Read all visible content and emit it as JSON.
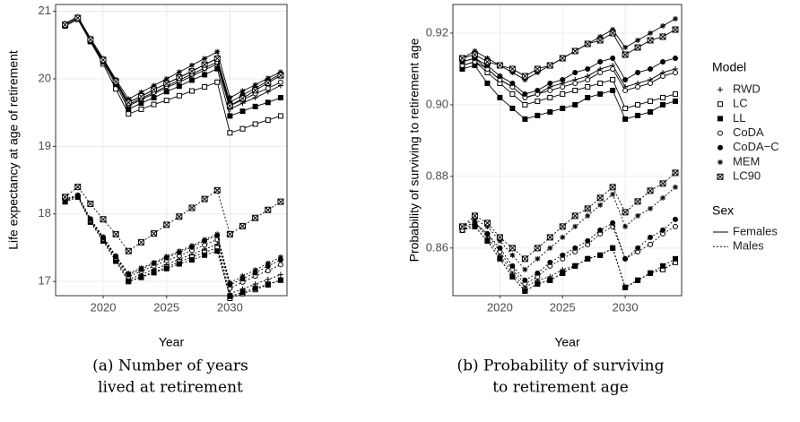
{
  "chart_data": [
    {
      "type": "line",
      "xlabel": "Year",
      "ylabel": "Life expectancy at age of retirement",
      "caption": [
        "(a) Number of years",
        "lived at retirement"
      ],
      "x": [
        2017,
        2018,
        2019,
        2020,
        2021,
        2022,
        2023,
        2024,
        2025,
        2026,
        2027,
        2028,
        2029,
        2030,
        2031,
        2032,
        2033,
        2034
      ],
      "xlim": [
        2016.25,
        2034.5
      ],
      "xticks": [
        2020,
        2025,
        2030
      ],
      "ylim": [
        16.79,
        21.1
      ],
      "yticks": [
        17,
        18,
        19,
        20,
        21
      ],
      "grid": true,
      "series": [
        {
          "model": "RWD",
          "sex": "Females",
          "values": [
            20.8,
            20.9,
            20.57,
            20.27,
            19.95,
            19.6,
            19.69,
            19.78,
            19.87,
            19.95,
            20.04,
            20.13,
            20.22,
            19.55,
            19.64,
            19.72,
            19.81,
            19.9
          ]
        },
        {
          "model": "LC",
          "sex": "Females",
          "values": [
            20.78,
            20.88,
            20.55,
            20.22,
            19.85,
            19.48,
            19.55,
            19.62,
            19.68,
            19.75,
            19.82,
            19.88,
            19.95,
            19.2,
            19.26,
            19.33,
            19.39,
            19.45
          ]
        },
        {
          "model": "LL",
          "sex": "Females",
          "values": [
            20.8,
            20.9,
            20.55,
            20.25,
            19.92,
            19.55,
            19.64,
            19.72,
            19.81,
            19.89,
            19.98,
            20.06,
            20.15,
            19.45,
            19.52,
            19.59,
            19.65,
            19.72
          ]
        },
        {
          "model": "CoDA",
          "sex": "Females",
          "values": [
            20.8,
            20.9,
            20.57,
            20.27,
            19.96,
            19.62,
            19.71,
            19.8,
            19.89,
            19.98,
            20.07,
            20.16,
            20.25,
            19.6,
            19.69,
            19.78,
            19.86,
            19.95
          ]
        },
        {
          "model": "CoDA−C",
          "sex": "Females",
          "values": [
            20.8,
            20.9,
            20.58,
            20.28,
            19.97,
            19.65,
            19.74,
            19.84,
            19.93,
            20.02,
            20.11,
            20.21,
            20.3,
            19.65,
            19.76,
            19.86,
            19.97,
            20.07
          ]
        },
        {
          "model": "MEM",
          "sex": "Females",
          "values": [
            20.82,
            20.92,
            20.6,
            20.3,
            19.99,
            19.7,
            19.8,
            19.9,
            20.0,
            20.1,
            20.2,
            20.3,
            20.4,
            19.72,
            19.82,
            19.91,
            20.01,
            20.1
          ]
        },
        {
          "model": "LC90",
          "sex": "Females",
          "values": [
            20.8,
            20.9,
            20.58,
            20.28,
            19.96,
            19.65,
            19.74,
            19.84,
            19.93,
            20.02,
            20.11,
            20.21,
            20.3,
            19.6,
            19.71,
            19.83,
            19.94,
            20.05
          ]
        },
        {
          "model": "RWD",
          "sex": "Males",
          "values": [
            18.2,
            18.27,
            17.9,
            17.62,
            17.33,
            17.03,
            17.1,
            17.18,
            17.25,
            17.33,
            17.4,
            17.48,
            17.55,
            16.82,
            16.89,
            16.96,
            17.03,
            17.1
          ]
        },
        {
          "model": "LC",
          "sex": "Males",
          "values": [
            18.18,
            18.25,
            17.88,
            17.6,
            17.3,
            17.0,
            17.07,
            17.14,
            17.21,
            17.29,
            17.36,
            17.43,
            17.5,
            16.75,
            16.82,
            16.88,
            16.95,
            17.02
          ]
        },
        {
          "model": "LL",
          "sex": "Males",
          "values": [
            18.18,
            18.25,
            17.88,
            17.6,
            17.3,
            17.0,
            17.06,
            17.13,
            17.19,
            17.26,
            17.32,
            17.39,
            17.45,
            16.78,
            16.84,
            16.9,
            16.96,
            17.02
          ]
        },
        {
          "model": "CoDA",
          "sex": "Males",
          "values": [
            18.2,
            18.27,
            17.9,
            17.63,
            17.35,
            17.07,
            17.15,
            17.23,
            17.31,
            17.38,
            17.46,
            17.54,
            17.62,
            16.9,
            16.99,
            17.08,
            17.16,
            17.25
          ]
        },
        {
          "model": "CoDA−C",
          "sex": "Males",
          "values": [
            18.2,
            18.27,
            17.92,
            17.65,
            17.37,
            17.1,
            17.18,
            17.27,
            17.35,
            17.43,
            17.51,
            17.6,
            17.68,
            16.95,
            17.04,
            17.13,
            17.23,
            17.32
          ]
        },
        {
          "model": "MEM",
          "sex": "Males",
          "values": [
            18.22,
            18.28,
            17.93,
            17.66,
            17.38,
            17.12,
            17.2,
            17.28,
            17.37,
            17.45,
            17.53,
            17.62,
            17.7,
            16.98,
            17.08,
            17.17,
            17.27,
            17.36
          ]
        },
        {
          "model": "LC90",
          "sex": "Males",
          "values": [
            18.25,
            18.4,
            18.15,
            17.92,
            17.7,
            17.45,
            17.58,
            17.71,
            17.84,
            17.96,
            18.09,
            18.22,
            18.35,
            17.7,
            17.82,
            17.94,
            18.06,
            18.18
          ]
        }
      ]
    },
    {
      "type": "line",
      "xlabel": "Year",
      "ylabel": "Probability of surviving to retirement age",
      "caption": [
        "(b) Probability of surviving",
        "to retirement age"
      ],
      "x": [
        2017,
        2018,
        2019,
        2020,
        2021,
        2022,
        2023,
        2024,
        2025,
        2026,
        2027,
        2028,
        2029,
        2030,
        2031,
        2032,
        2033,
        2034
      ],
      "xlim": [
        2016.25,
        2034.5
      ],
      "xticks": [
        2020,
        2025,
        2030
      ],
      "ylim": [
        0.8467,
        0.928
      ],
      "yticks": [
        0.86,
        0.88,
        {
          "value": 0.9,
          "label": "0.90"
        },
        0.92
      ],
      "grid": true,
      "series": [
        {
          "model": "RWD",
          "sex": "Females",
          "values": [
            0.912,
            0.913,
            0.91,
            0.907,
            0.905,
            0.902,
            0.903,
            0.905,
            0.906,
            0.907,
            0.908,
            0.91,
            0.911,
            0.905,
            0.906,
            0.907,
            0.909,
            0.91
          ]
        },
        {
          "model": "LC",
          "sex": "Females",
          "values": [
            0.911,
            0.912,
            0.909,
            0.906,
            0.903,
            0.9,
            0.901,
            0.902,
            0.903,
            0.904,
            0.905,
            0.906,
            0.907,
            0.899,
            0.9,
            0.901,
            0.902,
            0.903
          ]
        },
        {
          "model": "LL",
          "sex": "Females",
          "values": [
            0.91,
            0.911,
            0.906,
            0.902,
            0.899,
            0.896,
            0.897,
            0.898,
            0.899,
            0.9,
            0.902,
            0.903,
            0.904,
            0.896,
            0.897,
            0.898,
            0.9,
            0.901
          ]
        },
        {
          "model": "CoDA",
          "sex": "Females",
          "values": [
            0.911,
            0.912,
            0.91,
            0.907,
            0.905,
            0.902,
            0.903,
            0.904,
            0.905,
            0.906,
            0.907,
            0.909,
            0.91,
            0.904,
            0.905,
            0.906,
            0.908,
            0.909
          ]
        },
        {
          "model": "CoDA−C",
          "sex": "Females",
          "values": [
            0.912,
            0.913,
            0.911,
            0.908,
            0.906,
            0.903,
            0.904,
            0.906,
            0.907,
            0.909,
            0.91,
            0.912,
            0.913,
            0.907,
            0.909,
            0.91,
            0.912,
            0.913
          ]
        },
        {
          "model": "MEM",
          "sex": "Females",
          "values": [
            0.913,
            0.915,
            0.913,
            0.911,
            0.909,
            0.907,
            0.909,
            0.911,
            0.913,
            0.915,
            0.917,
            0.919,
            0.921,
            0.916,
            0.918,
            0.92,
            0.922,
            0.924
          ]
        },
        {
          "model": "LC90",
          "sex": "Females",
          "values": [
            0.913,
            0.914,
            0.912,
            0.911,
            0.91,
            0.908,
            0.91,
            0.911,
            0.913,
            0.915,
            0.917,
            0.918,
            0.92,
            0.914,
            0.916,
            0.918,
            0.919,
            0.921
          ]
        },
        {
          "model": "RWD",
          "sex": "Males",
          "values": [
            0.865,
            0.867,
            0.863,
            0.858,
            0.853,
            0.849,
            0.851,
            0.852,
            0.854,
            0.855,
            0.857,
            0.858,
            0.86,
            0.849,
            0.851,
            0.853,
            0.854,
            0.856
          ]
        },
        {
          "model": "LC",
          "sex": "Males",
          "values": [
            0.865,
            0.866,
            0.862,
            0.857,
            0.852,
            0.848,
            0.85,
            0.851,
            0.853,
            0.855,
            0.857,
            0.858,
            0.86,
            0.849,
            0.851,
            0.853,
            0.854,
            0.856
          ]
        },
        {
          "model": "LL",
          "sex": "Males",
          "values": [
            0.865,
            0.866,
            0.862,
            0.857,
            0.852,
            0.848,
            0.85,
            0.851,
            0.853,
            0.855,
            0.857,
            0.858,
            0.86,
            0.849,
            0.851,
            0.853,
            0.855,
            0.857
          ]
        },
        {
          "model": "CoDA",
          "sex": "Males",
          "values": [
            0.865,
            0.867,
            0.864,
            0.859,
            0.854,
            0.85,
            0.852,
            0.855,
            0.857,
            0.859,
            0.861,
            0.864,
            0.866,
            0.857,
            0.859,
            0.861,
            0.864,
            0.866
          ]
        },
        {
          "model": "CoDA−C",
          "sex": "Males",
          "values": [
            0.866,
            0.867,
            0.864,
            0.86,
            0.855,
            0.851,
            0.853,
            0.856,
            0.858,
            0.86,
            0.862,
            0.865,
            0.867,
            0.857,
            0.86,
            0.863,
            0.865,
            0.868
          ]
        },
        {
          "model": "MEM",
          "sex": "Males",
          "values": [
            0.866,
            0.868,
            0.866,
            0.862,
            0.858,
            0.854,
            0.857,
            0.86,
            0.863,
            0.866,
            0.869,
            0.872,
            0.875,
            0.866,
            0.869,
            0.871,
            0.874,
            0.877
          ]
        },
        {
          "model": "LC90",
          "sex": "Males",
          "values": [
            0.866,
            0.869,
            0.867,
            0.863,
            0.86,
            0.857,
            0.86,
            0.863,
            0.866,
            0.869,
            0.871,
            0.874,
            0.877,
            0.87,
            0.873,
            0.876,
            0.878,
            0.881
          ]
        }
      ],
      "legend": {
        "model_title": "Model",
        "models": [
          {
            "name": "RWD",
            "marker": "plus"
          },
          {
            "name": "LC",
            "marker": "square-open"
          },
          {
            "name": "LL",
            "marker": "square-filled"
          },
          {
            "name": "CoDA",
            "marker": "circle-open"
          },
          {
            "name": "CoDA−C",
            "marker": "circle-filled"
          },
          {
            "name": "MEM",
            "marker": "asterisk"
          },
          {
            "name": "LC90",
            "marker": "square-cross"
          }
        ],
        "sex_title": "Sex",
        "sexes": [
          {
            "name": "Females",
            "dash": "none"
          },
          {
            "name": "Males",
            "dash": "2,2"
          }
        ]
      }
    }
  ]
}
